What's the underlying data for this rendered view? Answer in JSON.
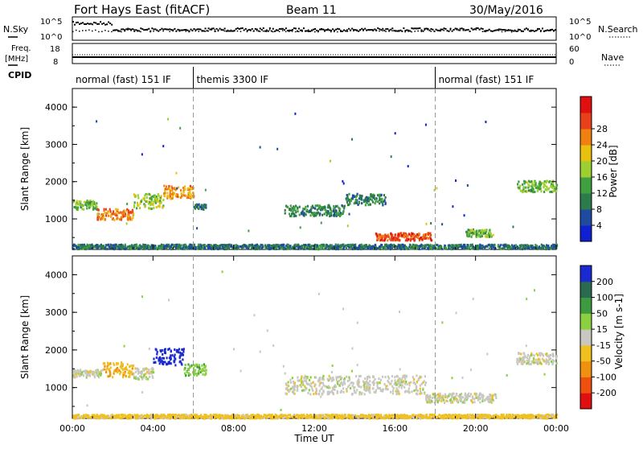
{
  "header": {
    "station": "Fort Hays East (fitACF)",
    "beam": "Beam 11",
    "date": "30/May/2016"
  },
  "panels": {
    "nsky_label": "N.Sky",
    "nsearch_label": "N.Search",
    "freq_label": "Freq.",
    "freq_unit": "[MHz]",
    "cpid_label": "CPID",
    "nave_label": "Nave",
    "nsky_ticks": [
      "10^5",
      "10^0"
    ],
    "nsearch_ticks": [
      "10^5",
      "10^0"
    ],
    "freq_ticks": [
      "18",
      "8"
    ],
    "nave_ticks": [
      "60",
      "0"
    ]
  },
  "cpid_segments": [
    {
      "label": "normal (fast) 151 IF",
      "start_hour": 0,
      "end_hour": 6
    },
    {
      "label": "themis 3300 IF",
      "start_hour": 6,
      "end_hour": 18
    },
    {
      "label": "normal (fast) 151 IF",
      "start_hour": 18,
      "end_hour": 24
    }
  ],
  "axes": {
    "xlabel": "Time UT",
    "x_ticks": [
      "00:00",
      "04:00",
      "08:00",
      "12:00",
      "16:00",
      "20:00",
      "00:00"
    ],
    "ylabel": "Slant Range [km]",
    "y_ticks": [
      "1000",
      "2000",
      "3000",
      "4000"
    ]
  },
  "colorbars": {
    "power": {
      "label": "Power [dB]",
      "ticks": [
        "4",
        "8",
        "12",
        "16",
        "20",
        "24",
        "28"
      ],
      "colors": [
        "#1020d0",
        "#1e4aa0",
        "#2d7a4a",
        "#40a040",
        "#9ecf30",
        "#e8c010",
        "#f08010",
        "#e8401a",
        "#e01010"
      ]
    },
    "velocity": {
      "label": "Velocity [m s-1]",
      "ticks": [
        "200",
        "100",
        "50",
        "15",
        "-15",
        "-50",
        "-100",
        "-200"
      ],
      "colors": [
        "#1a2ad0",
        "#2a6a50",
        "#3e9a3e",
        "#8ad040",
        "#c8c8c0",
        "#f0c020",
        "#f09010",
        "#ee5010",
        "#e01010"
      ]
    }
  },
  "chart_data": [
    {
      "type": "heatmap",
      "title": "Power [dB]",
      "xlabel": "Time UT",
      "ylabel": "Slant Range [km]",
      "xlim_hours": [
        0,
        24
      ],
      "ylim_km": [
        180,
        4500
      ],
      "scatter_regions": [
        {
          "t_start": 0.0,
          "t_end": 1.2,
          "range_center": 1400,
          "range_width": 250,
          "value": 14
        },
        {
          "t_start": 1.2,
          "t_end": 3.0,
          "range_center": 1150,
          "range_width": 300,
          "value": 24
        },
        {
          "t_start": 3.0,
          "t_end": 4.5,
          "range_center": 1500,
          "range_width": 400,
          "value": 16
        },
        {
          "t_start": 4.5,
          "t_end": 6.0,
          "range_center": 1750,
          "range_width": 350,
          "value": 22
        },
        {
          "t_start": 6.0,
          "t_end": 6.6,
          "range_center": 1350,
          "range_width": 150,
          "value": 8
        },
        {
          "t_start": 10.5,
          "t_end": 13.5,
          "range_center": 1250,
          "range_width": 300,
          "value": 10
        },
        {
          "t_start": 13.5,
          "t_end": 15.5,
          "range_center": 1550,
          "range_width": 300,
          "value": 9
        },
        {
          "t_start": 15.0,
          "t_end": 17.8,
          "range_center": 550,
          "range_width": 200,
          "value": 26
        },
        {
          "t_start": 19.5,
          "t_end": 20.8,
          "range_center": 650,
          "range_width": 200,
          "value": 14
        },
        {
          "t_start": 22.0,
          "t_end": 24.0,
          "range_center": 1900,
          "range_width": 300,
          "value": 14
        },
        {
          "t_start": 0.0,
          "t_end": 24.0,
          "range_center": 280,
          "range_width": 120,
          "value": 8
        }
      ]
    },
    {
      "type": "heatmap",
      "title": "Velocity [m s-1]",
      "xlabel": "Time UT",
      "ylabel": "Slant Range [km]",
      "xlim_hours": [
        0,
        24
      ],
      "ylim_km": [
        180,
        4500
      ],
      "scatter_regions": [
        {
          "t_start": 0.0,
          "t_end": 1.5,
          "range_center": 1400,
          "range_width": 200,
          "value": 0
        },
        {
          "t_start": 1.5,
          "t_end": 3.0,
          "range_center": 1500,
          "range_width": 400,
          "value": -40
        },
        {
          "t_start": 3.0,
          "t_end": 4.0,
          "range_center": 1400,
          "range_width": 300,
          "value": 0
        },
        {
          "t_start": 4.0,
          "t_end": 5.5,
          "range_center": 1850,
          "range_width": 450,
          "value": 220
        },
        {
          "t_start": 5.5,
          "t_end": 6.6,
          "range_center": 1500,
          "range_width": 300,
          "value": 40
        },
        {
          "t_start": 10.5,
          "t_end": 17.5,
          "range_center": 1100,
          "range_width": 500,
          "value": 0
        },
        {
          "t_start": 17.5,
          "t_end": 21.0,
          "range_center": 750,
          "range_width": 250,
          "value": 0
        },
        {
          "t_start": 22.0,
          "t_end": 24.0,
          "range_center": 1800,
          "range_width": 300,
          "value": 0
        },
        {
          "t_start": 0.0,
          "t_end": 24.0,
          "range_center": 260,
          "range_width": 100,
          "value": -30
        }
      ]
    }
  ]
}
